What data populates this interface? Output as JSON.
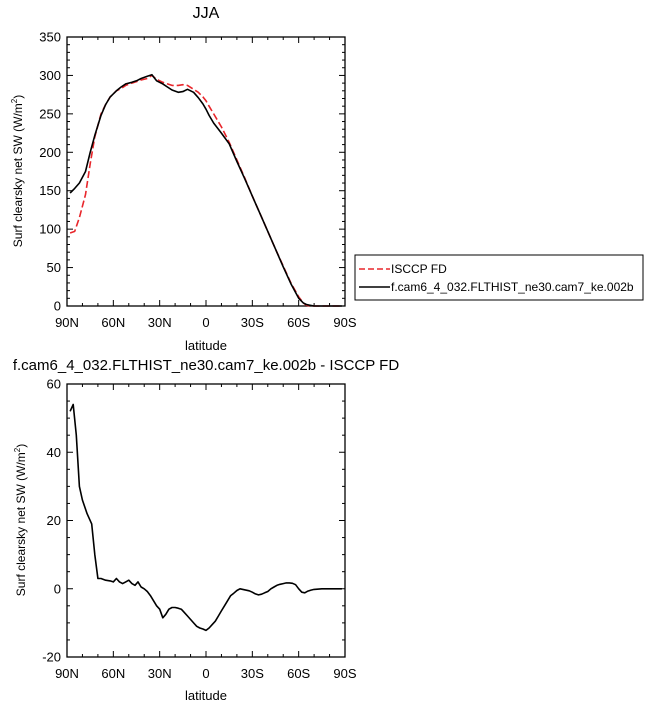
{
  "chart_data": [
    {
      "type": "line",
      "title": "JJA",
      "xlabel": "latitude",
      "ylabel": "Surf clearsky net SW (W/m",
      "ylabel_sup": "2",
      "ylabel_close": ")",
      "xlim": [
        90,
        -90
      ],
      "ylim": [
        0,
        350
      ],
      "xticks": [
        90,
        60,
        30,
        0,
        -30,
        -60,
        -90
      ],
      "xtick_labels": [
        "90N",
        "60N",
        "30N",
        "0",
        "30S",
        "60S",
        "90S"
      ],
      "yticks": [
        0,
        50,
        100,
        150,
        200,
        250,
        300,
        350
      ],
      "ytick_labels": [
        "0",
        "50",
        "100",
        "150",
        "200",
        "250",
        "300",
        "350"
      ],
      "legend_position": "right",
      "series": [
        {
          "name": "ISCCP FD",
          "color": "#e8262b",
          "dash": "dashed",
          "x": [
            88,
            85,
            82,
            78,
            75,
            72,
            68,
            65,
            62,
            58,
            55,
            52,
            48,
            45,
            42,
            38,
            35,
            32,
            28,
            25,
            22,
            18,
            15,
            12,
            8,
            5,
            2,
            0,
            -2,
            -5,
            -10,
            -15,
            -20,
            -25,
            -30,
            -35,
            -40,
            -45,
            -50,
            -55,
            -60,
            -63,
            -65,
            -67,
            -70,
            -75,
            -80,
            -85,
            -88
          ],
          "y": [
            95,
            97,
            115,
            145,
            185,
            220,
            250,
            262,
            272,
            280,
            283,
            287,
            290,
            292,
            294,
            296,
            300,
            295,
            291,
            289,
            287,
            287,
            288,
            287,
            282,
            278,
            272,
            267,
            260,
            250,
            233,
            213,
            190,
            167,
            143,
            120,
            97,
            74,
            52,
            30,
            12,
            4,
            1,
            0,
            0,
            0,
            0,
            0,
            0
          ]
        },
        {
          "name": "f.cam6_4_032.FLTHIST_ne30.cam7_ke.002b",
          "color": "#000000",
          "dash": "solid",
          "x": [
            88,
            85,
            82,
            78,
            75,
            72,
            68,
            65,
            62,
            58,
            55,
            52,
            48,
            45,
            42,
            38,
            35,
            32,
            28,
            25,
            22,
            18,
            15,
            12,
            8,
            5,
            2,
            0,
            -2,
            -5,
            -10,
            -15,
            -20,
            -25,
            -30,
            -35,
            -40,
            -45,
            -50,
            -55,
            -60,
            -63,
            -65,
            -67,
            -70,
            -75,
            -80,
            -85,
            -88
          ],
          "y": [
            147,
            153,
            160,
            175,
            200,
            222,
            248,
            262,
            272,
            280,
            285,
            289,
            291,
            293,
            296,
            299,
            301,
            293,
            289,
            285,
            281,
            278,
            279,
            282,
            278,
            271,
            263,
            256,
            248,
            238,
            225,
            211,
            188,
            166,
            143,
            120,
            97,
            74,
            51,
            29,
            10,
            4,
            2,
            1,
            0,
            0,
            0,
            0,
            0
          ]
        }
      ]
    },
    {
      "type": "line",
      "title": "f.cam6_4_032.FLTHIST_ne30.cam7_ke.002b - ISCCP FD",
      "xlabel": "latitude",
      "ylabel": "Surf clearsky net SW (W/m",
      "ylabel_sup": "2",
      "ylabel_close": ")",
      "xlim": [
        90,
        -90
      ],
      "ylim": [
        -20,
        60
      ],
      "xticks": [
        90,
        60,
        30,
        0,
        -30,
        -60,
        -90
      ],
      "xtick_labels": [
        "90N",
        "60N",
        "30N",
        "0",
        "30S",
        "60S",
        "90S"
      ],
      "yticks": [
        -20,
        0,
        20,
        40,
        60
      ],
      "ytick_labels": [
        "-20",
        "0",
        "20",
        "40",
        "60"
      ],
      "series": [
        {
          "color": "#000000",
          "dash": "solid",
          "x": [
            88,
            86,
            84,
            82,
            80,
            77,
            74,
            72,
            70,
            68,
            65,
            62,
            60,
            58,
            56,
            54,
            52,
            50,
            48,
            46,
            44,
            42,
            40,
            38,
            36,
            34,
            32,
            30,
            28,
            26,
            24,
            22,
            20,
            18,
            16,
            14,
            12,
            10,
            8,
            6,
            4,
            2,
            0,
            -2,
            -4,
            -6,
            -8,
            -10,
            -12,
            -14,
            -16,
            -18,
            -20,
            -22,
            -25,
            -28,
            -30,
            -32,
            -34,
            -36,
            -38,
            -40,
            -42,
            -44,
            -46,
            -48,
            -50,
            -52,
            -54,
            -56,
            -58,
            -60,
            -62,
            -64,
            -66,
            -68,
            -70,
            -75,
            -80,
            -85,
            -88
          ],
          "y": [
            52,
            54,
            45,
            30,
            26,
            22,
            19,
            10,
            3,
            3,
            2.5,
            2.3,
            2,
            3,
            2,
            1.5,
            2,
            2.5,
            1.5,
            1,
            2,
            0.5,
            0,
            -0.8,
            -2,
            -3.5,
            -5,
            -6,
            -8.5,
            -7.5,
            -6,
            -5.5,
            -5.5,
            -5.7,
            -6,
            -7,
            -8,
            -9,
            -10,
            -11,
            -11.5,
            -11.8,
            -12.2,
            -11.5,
            -10.5,
            -9.5,
            -8,
            -6.5,
            -5,
            -3.5,
            -2,
            -1.3,
            -0.5,
            0,
            -0.3,
            -0.6,
            -1,
            -1.5,
            -1.8,
            -1.6,
            -1.2,
            -0.8,
            0,
            0.5,
            1,
            1.3,
            1.5,
            1.7,
            1.7,
            1.6,
            1.2,
            0,
            -1,
            -1.2,
            -0.7,
            -0.4,
            -0.2,
            0,
            0,
            0,
            0
          ]
        }
      ]
    }
  ]
}
